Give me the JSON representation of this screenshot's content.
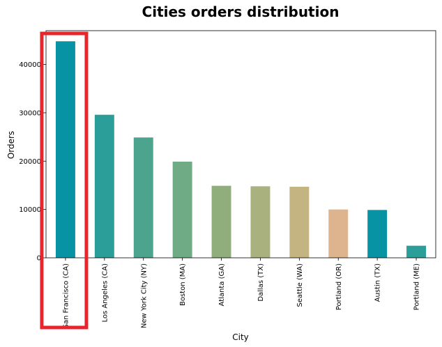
{
  "chart_data": {
    "type": "bar",
    "title": "Cities orders distribution",
    "xlabel": "City",
    "ylabel": "Orders",
    "categories": [
      "San Francisco (CA)",
      "Los Angeles (CA)",
      "New York City (NY)",
      "Boston (MA)",
      "Atlanta (GA)",
      "Dallas (TX)",
      "Seattle (WA)",
      "Portland (OR)",
      "Austin (TX)",
      "Portland (ME)"
    ],
    "values": [
      44800,
      29600,
      24900,
      19900,
      14900,
      14800,
      14700,
      10000,
      9900,
      2500
    ],
    "ylim": [
      0,
      47000
    ],
    "yticks": [
      0,
      10000,
      20000,
      30000,
      40000
    ],
    "grid": false,
    "legend": "none",
    "bar_colors": [
      "#0893a5",
      "#2c9e99",
      "#4ca48f",
      "#6fab85",
      "#8fae7c",
      "#a9b27e",
      "#c4b482",
      "#ddb48d",
      "#0893a5",
      "#2c9e99"
    ],
    "highlight": {
      "category": "San Francisco (CA)",
      "color": "#e8242c"
    }
  }
}
